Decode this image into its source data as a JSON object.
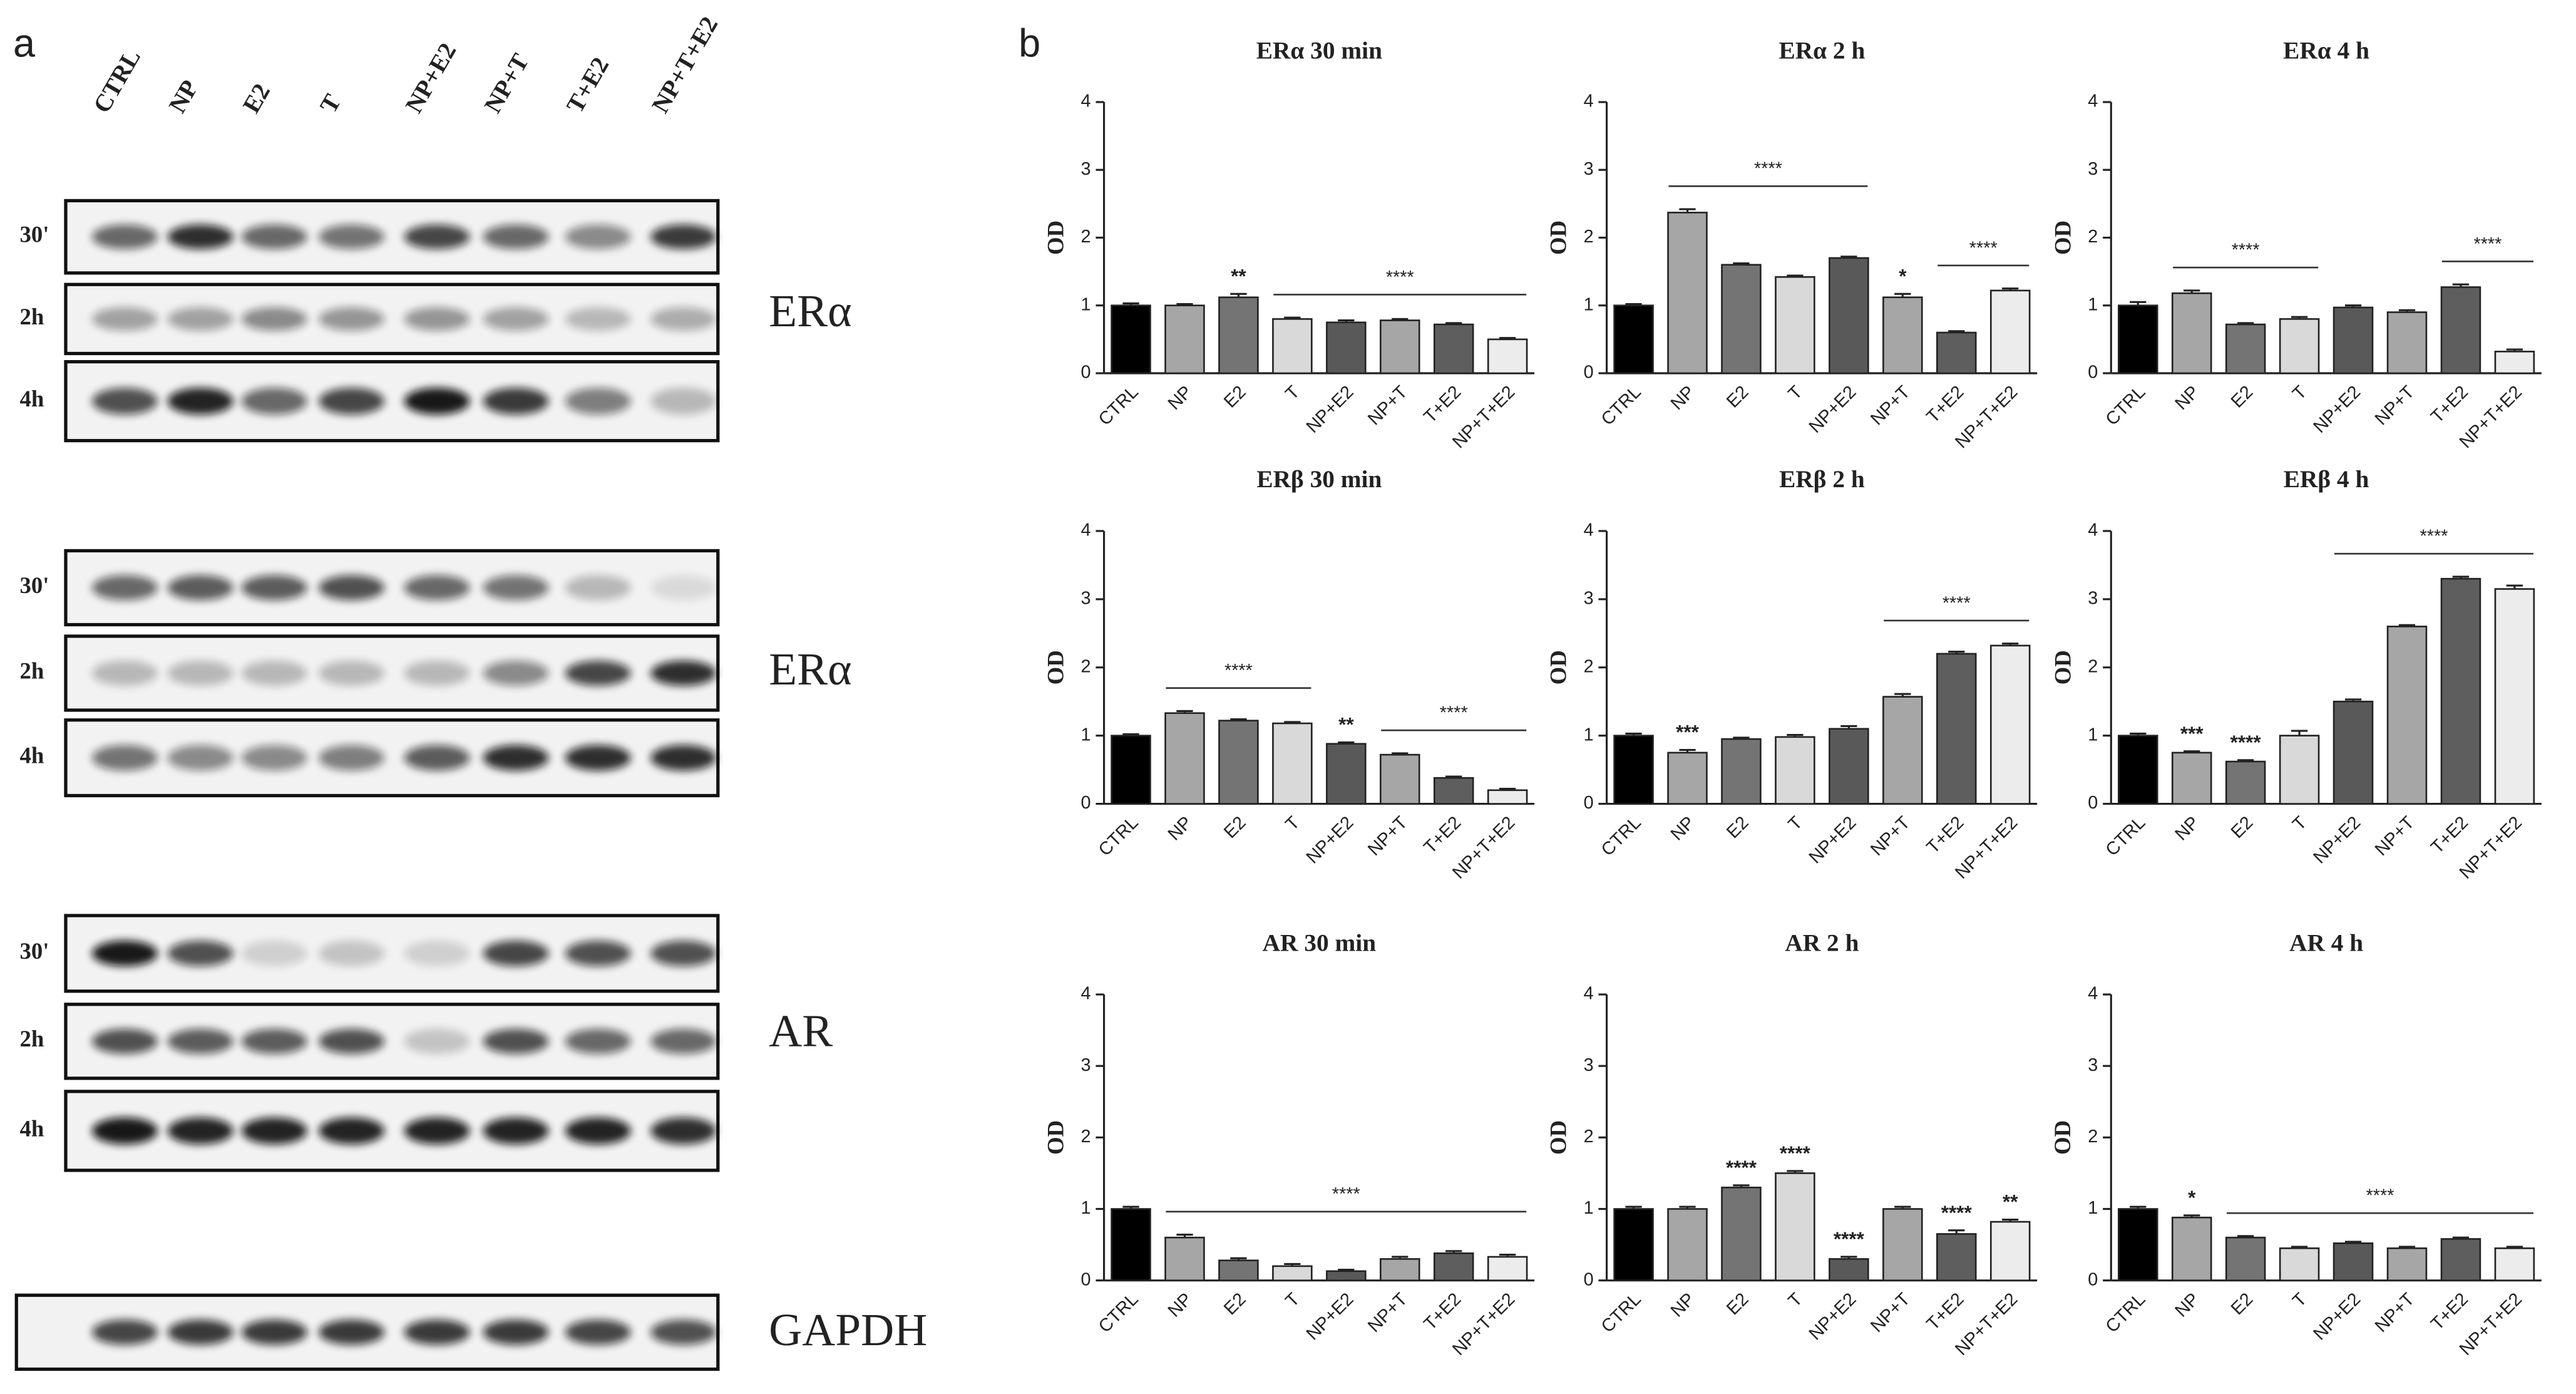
{
  "panel_a": {
    "label": "a",
    "lanes": [
      "CTRL",
      "NP",
      "E2",
      "T",
      "NP+E2",
      "NP+T",
      "T+E2",
      "NP+T+E2"
    ],
    "groups": [
      {
        "protein": "ERα",
        "rows": [
          "30'",
          "2h",
          "4h"
        ]
      },
      {
        "protein": "ERα",
        "rows": [
          "30'",
          "2h",
          "4h"
        ]
      },
      {
        "protein": "AR",
        "rows": [
          "30'",
          "2h",
          "4h"
        ]
      },
      {
        "protein": "GAPDH"
      }
    ]
  },
  "panel_b": {
    "label": "b"
  },
  "chart_data": [
    {
      "type": "bar",
      "title": "ERα 30 min",
      "ylabel": "OD",
      "ylim": [
        0,
        4
      ],
      "yticks": [
        0,
        1,
        2,
        3,
        4
      ],
      "categories": [
        "CTRL",
        "NP",
        "E2",
        "T",
        "NP+E2",
        "NP+T",
        "T+E2",
        "NP+T+E2"
      ],
      "values": [
        1.0,
        1.0,
        1.12,
        0.8,
        0.75,
        0.78,
        0.72,
        0.5
      ],
      "errors": [
        0.03,
        0.02,
        0.05,
        0.02,
        0.03,
        0.02,
        0.02,
        0.02
      ],
      "colors": [
        "#000000",
        "#a6a6a6",
        "#747474",
        "#d9d9d9",
        "#595959",
        "#a6a6a6",
        "#5e5e5e",
        "#ececec"
      ],
      "annotations": [
        {
          "text": "**",
          "over": [
            "E2"
          ]
        },
        {
          "text": "****",
          "over": [
            "T",
            "NP+T+E2"
          ]
        }
      ]
    },
    {
      "type": "bar",
      "title": "ERα 2 h",
      "ylabel": "OD",
      "ylim": [
        0,
        4
      ],
      "yticks": [
        0,
        1,
        2,
        3,
        4
      ],
      "categories": [
        "CTRL",
        "NP",
        "E2",
        "T",
        "NP+E2",
        "NP+T",
        "T+E2",
        "NP+T+E2"
      ],
      "values": [
        1.0,
        2.37,
        1.6,
        1.42,
        1.7,
        1.12,
        0.6,
        1.22
      ],
      "errors": [
        0.02,
        0.05,
        0.02,
        0.02,
        0.02,
        0.05,
        0.02,
        0.03
      ],
      "colors": [
        "#000000",
        "#a6a6a6",
        "#747474",
        "#d9d9d9",
        "#595959",
        "#a6a6a6",
        "#5e5e5e",
        "#ececec"
      ],
      "annotations": [
        {
          "text": "****",
          "over": [
            "NP",
            "NP+E2"
          ]
        },
        {
          "text": "*",
          "over": [
            "NP+T"
          ]
        },
        {
          "text": "****",
          "over": [
            "T+E2",
            "NP+T+E2"
          ]
        }
      ]
    },
    {
      "type": "bar",
      "title": "ERα 4 h",
      "ylabel": "OD",
      "ylim": [
        0,
        4
      ],
      "yticks": [
        0,
        1,
        2,
        3,
        4
      ],
      "categories": [
        "CTRL",
        "NP",
        "E2",
        "T",
        "NP+E2",
        "NP+T",
        "T+E2",
        "NP+T+E2"
      ],
      "values": [
        1.0,
        1.18,
        0.72,
        0.8,
        0.97,
        0.9,
        1.27,
        0.32
      ],
      "errors": [
        0.05,
        0.04,
        0.02,
        0.03,
        0.03,
        0.03,
        0.04,
        0.03
      ],
      "colors": [
        "#000000",
        "#a6a6a6",
        "#747474",
        "#d9d9d9",
        "#595959",
        "#a6a6a6",
        "#5e5e5e",
        "#ececec"
      ],
      "annotations": [
        {
          "text": "****",
          "over": [
            "NP",
            "T"
          ]
        },
        {
          "text": "****",
          "over": [
            "T+E2",
            "NP+T+E2"
          ]
        }
      ]
    },
    {
      "type": "bar",
      "title": "ERβ 30 min",
      "ylabel": "OD",
      "ylim": [
        0,
        4
      ],
      "yticks": [
        0,
        1,
        2,
        3,
        4
      ],
      "categories": [
        "CTRL",
        "NP",
        "E2",
        "T",
        "NP+E2",
        "NP+T",
        "T+E2",
        "NP+T+E2"
      ],
      "values": [
        1.0,
        1.33,
        1.22,
        1.18,
        0.88,
        0.72,
        0.38,
        0.2
      ],
      "errors": [
        0.02,
        0.03,
        0.02,
        0.02,
        0.02,
        0.02,
        0.02,
        0.02
      ],
      "colors": [
        "#000000",
        "#a6a6a6",
        "#747474",
        "#d9d9d9",
        "#595959",
        "#a6a6a6",
        "#5e5e5e",
        "#ececec"
      ],
      "annotations": [
        {
          "text": "****",
          "over": [
            "NP",
            "T"
          ]
        },
        {
          "text": "**",
          "over": [
            "NP+E2"
          ]
        },
        {
          "text": "****",
          "over": [
            "NP+T",
            "NP+T+E2"
          ]
        }
      ]
    },
    {
      "type": "bar",
      "title": "ERβ 2 h",
      "ylabel": "OD",
      "ylim": [
        0,
        4
      ],
      "yticks": [
        0,
        1,
        2,
        3,
        4
      ],
      "categories": [
        "CTRL",
        "NP",
        "E2",
        "T",
        "NP+E2",
        "NP+T",
        "T+E2",
        "NP+T+E2"
      ],
      "values": [
        1.0,
        0.75,
        0.95,
        0.98,
        1.1,
        1.57,
        2.2,
        2.32
      ],
      "errors": [
        0.03,
        0.04,
        0.02,
        0.03,
        0.04,
        0.04,
        0.03,
        0.03
      ],
      "colors": [
        "#000000",
        "#a6a6a6",
        "#747474",
        "#d9d9d9",
        "#595959",
        "#a6a6a6",
        "#5e5e5e",
        "#ececec"
      ],
      "annotations": [
        {
          "text": "***",
          "over": [
            "NP"
          ]
        },
        {
          "text": "****",
          "over": [
            "NP+T",
            "NP+T+E2"
          ]
        }
      ]
    },
    {
      "type": "bar",
      "title": "ERβ 4 h",
      "ylabel": "OD",
      "ylim": [
        0,
        4
      ],
      "yticks": [
        0,
        1,
        2,
        3,
        4
      ],
      "categories": [
        "CTRL",
        "NP",
        "E2",
        "T",
        "NP+E2",
        "NP+T",
        "T+E2",
        "NP+T+E2"
      ],
      "values": [
        1.0,
        0.75,
        0.62,
        1.0,
        1.5,
        2.6,
        3.3,
        3.15
      ],
      "errors": [
        0.03,
        0.02,
        0.02,
        0.07,
        0.03,
        0.02,
        0.03,
        0.05
      ],
      "colors": [
        "#000000",
        "#a6a6a6",
        "#747474",
        "#d9d9d9",
        "#595959",
        "#a6a6a6",
        "#5e5e5e",
        "#ececec"
      ],
      "annotations": [
        {
          "text": "***",
          "over": [
            "NP"
          ]
        },
        {
          "text": "****",
          "over": [
            "E2"
          ]
        },
        {
          "text": "****",
          "over": [
            "NP+E2",
            "NP+T+E2"
          ]
        }
      ]
    },
    {
      "type": "bar",
      "title": "AR 30 min",
      "ylabel": "OD",
      "ylim": [
        0,
        4
      ],
      "yticks": [
        0,
        1,
        2,
        3,
        4
      ],
      "categories": [
        "CTRL",
        "NP",
        "E2",
        "T",
        "NP+E2",
        "NP+T",
        "T+E2",
        "NP+T+E2"
      ],
      "values": [
        1.0,
        0.6,
        0.28,
        0.2,
        0.13,
        0.3,
        0.38,
        0.33
      ],
      "errors": [
        0.03,
        0.04,
        0.03,
        0.03,
        0.02,
        0.03,
        0.03,
        0.03
      ],
      "colors": [
        "#000000",
        "#a6a6a6",
        "#747474",
        "#d9d9d9",
        "#595959",
        "#a6a6a6",
        "#5e5e5e",
        "#ececec"
      ],
      "annotations": [
        {
          "text": "****",
          "over": [
            "NP",
            "NP+T+E2"
          ]
        }
      ]
    },
    {
      "type": "bar",
      "title": "AR 2 h",
      "ylabel": "OD",
      "ylim": [
        0,
        4
      ],
      "yticks": [
        0,
        1,
        2,
        3,
        4
      ],
      "categories": [
        "CTRL",
        "NP",
        "E2",
        "T",
        "NP+E2",
        "NP+T",
        "T+E2",
        "NP+T+E2"
      ],
      "values": [
        1.0,
        1.0,
        1.3,
        1.5,
        0.3,
        1.0,
        0.65,
        0.82
      ],
      "errors": [
        0.03,
        0.03,
        0.03,
        0.03,
        0.03,
        0.03,
        0.05,
        0.03
      ],
      "colors": [
        "#000000",
        "#a6a6a6",
        "#747474",
        "#d9d9d9",
        "#595959",
        "#a6a6a6",
        "#5e5e5e",
        "#ececec"
      ],
      "annotations": [
        {
          "text": "****",
          "over": [
            "E2"
          ]
        },
        {
          "text": "****",
          "over": [
            "T"
          ]
        },
        {
          "text": "****",
          "over": [
            "NP+E2"
          ]
        },
        {
          "text": "****",
          "over": [
            "T+E2"
          ]
        },
        {
          "text": "**",
          "over": [
            "NP+T+E2"
          ]
        }
      ]
    },
    {
      "type": "bar",
      "title": "AR 4 h",
      "ylabel": "OD",
      "ylim": [
        0,
        4
      ],
      "yticks": [
        0,
        1,
        2,
        3,
        4
      ],
      "categories": [
        "CTRL",
        "NP",
        "E2",
        "T",
        "NP+E2",
        "NP+T",
        "T+E2",
        "NP+T+E2"
      ],
      "values": [
        1.0,
        0.88,
        0.6,
        0.45,
        0.52,
        0.45,
        0.58,
        0.45
      ],
      "errors": [
        0.03,
        0.03,
        0.02,
        0.02,
        0.02,
        0.02,
        0.02,
        0.02
      ],
      "colors": [
        "#000000",
        "#a6a6a6",
        "#747474",
        "#d9d9d9",
        "#595959",
        "#a6a6a6",
        "#5e5e5e",
        "#ececec"
      ],
      "annotations": [
        {
          "text": "*",
          "over": [
            "NP"
          ]
        },
        {
          "text": "****",
          "over": [
            "E2",
            "NP+T+E2"
          ]
        }
      ]
    }
  ]
}
